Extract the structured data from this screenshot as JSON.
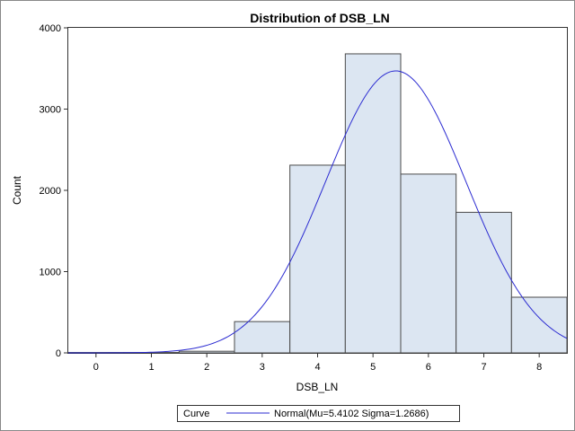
{
  "chart_data": {
    "type": "bar",
    "title": "Distribution of DSB_LN",
    "xlabel": "DSB_LN",
    "ylabel": "Count",
    "bin_width": 1,
    "bins": [
      {
        "center": 0,
        "count": 5
      },
      {
        "center": 1,
        "count": 5
      },
      {
        "center": 2,
        "count": 20
      },
      {
        "center": 3,
        "count": 385
      },
      {
        "center": 4,
        "count": 2310
      },
      {
        "center": 5,
        "count": 3680
      },
      {
        "center": 6,
        "count": 2200
      },
      {
        "center": 7,
        "count": 1730
      },
      {
        "center": 8,
        "count": 685
      }
    ],
    "x_ticks": [
      "0",
      "1",
      "2",
      "3",
      "4",
      "5",
      "6",
      "7",
      "8"
    ],
    "y_ticks": [
      "0",
      "1000",
      "2000",
      "3000",
      "4000"
    ],
    "xlim": [
      -0.5,
      8.5
    ],
    "ylim": [
      0,
      4000
    ],
    "curve": {
      "type": "normal",
      "mu": 5.4102,
      "sigma": 1.2686,
      "peak_count": 3470,
      "color": "#2b2bd1"
    },
    "bar_fill": "#dce6f2",
    "bar_stroke": "#4a4a4a",
    "legend": {
      "title": "Curve",
      "label": "Normal(Mu=5.4102 Sigma=1.2686)",
      "placement": "bottom"
    },
    "grid": false
  }
}
